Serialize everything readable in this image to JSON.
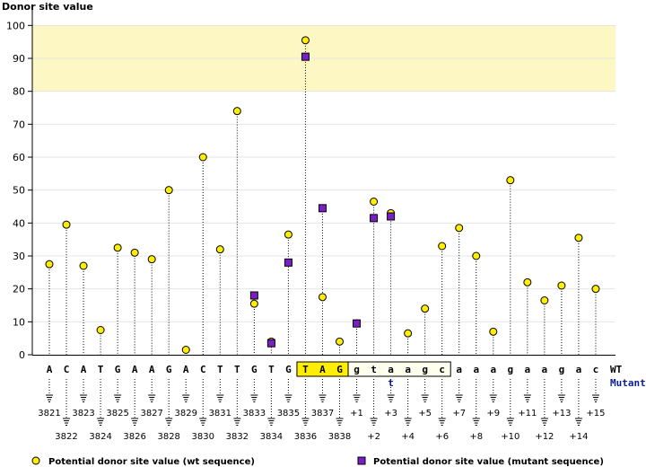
{
  "chart_data": {
    "type": "scatter",
    "ylabel": "Donor site value",
    "ylim": [
      0,
      105
    ],
    "yticks": [
      0,
      10,
      20,
      30,
      40,
      50,
      60,
      70,
      80,
      90,
      100
    ],
    "highlight_band": [
      80,
      100
    ],
    "row_labels": {
      "wt": "WT",
      "mutant": "Mutant"
    },
    "sequence": [
      "A",
      "C",
      "A",
      "T",
      "G",
      "A",
      "A",
      "G",
      "A",
      "C",
      "T",
      "T",
      "G",
      "T",
      "G",
      "T",
      "A",
      "G",
      "g",
      "t",
      "a",
      "a",
      "g",
      "c",
      "a",
      "a",
      "a",
      "g",
      "a",
      "a",
      "g",
      "a",
      "c"
    ],
    "mutant_sequence": [
      "",
      "",
      "",
      "",
      "",
      "",
      "",
      "",
      "",
      "",
      "",
      "",
      "",
      "",
      "",
      "",
      "",
      "",
      "",
      "",
      "t",
      "",
      "",
      "",
      "",
      "",
      "",
      "",
      "",
      "",
      "",
      "",
      ""
    ],
    "boxed_exon": [
      15,
      17
    ],
    "boxed_intron": [
      18,
      23
    ],
    "positions": [
      "3821",
      "3822",
      "3823",
      "3824",
      "3825",
      "3826",
      "3827",
      "3828",
      "3829",
      "3830",
      "3831",
      "3832",
      "3833",
      "3834",
      "3835",
      "3836",
      "3837",
      "3838",
      "+1",
      "+2",
      "+3",
      "+4",
      "+5",
      "+6",
      "+7",
      "+8",
      "+9",
      "+10",
      "+11",
      "+12",
      "+13",
      "+14",
      "+15"
    ],
    "series": [
      {
        "name": "Potential donor site value (wt sequence)",
        "marker": "circle",
        "color": "#ffee00",
        "values": [
          27.5,
          39.5,
          27,
          7.5,
          32.5,
          31,
          29,
          50,
          1.5,
          60,
          32,
          74,
          15.5,
          4,
          36.5,
          95.5,
          17.5,
          4,
          9.5,
          46.5,
          43,
          6.5,
          14,
          33,
          38.5,
          30,
          7,
          53,
          22,
          16.5,
          21,
          35.5,
          20
        ]
      },
      {
        "name": "Potential donor site value (mutant sequence)",
        "marker": "square",
        "color": "#7a1fc4",
        "values": [
          null,
          null,
          null,
          null,
          null,
          null,
          null,
          null,
          null,
          null,
          null,
          null,
          18,
          3.5,
          28,
          90.5,
          44.5,
          null,
          9.5,
          41.5,
          42,
          null,
          null,
          null,
          null,
          null,
          null,
          null,
          null,
          null,
          null,
          null,
          null
        ]
      }
    ]
  }
}
